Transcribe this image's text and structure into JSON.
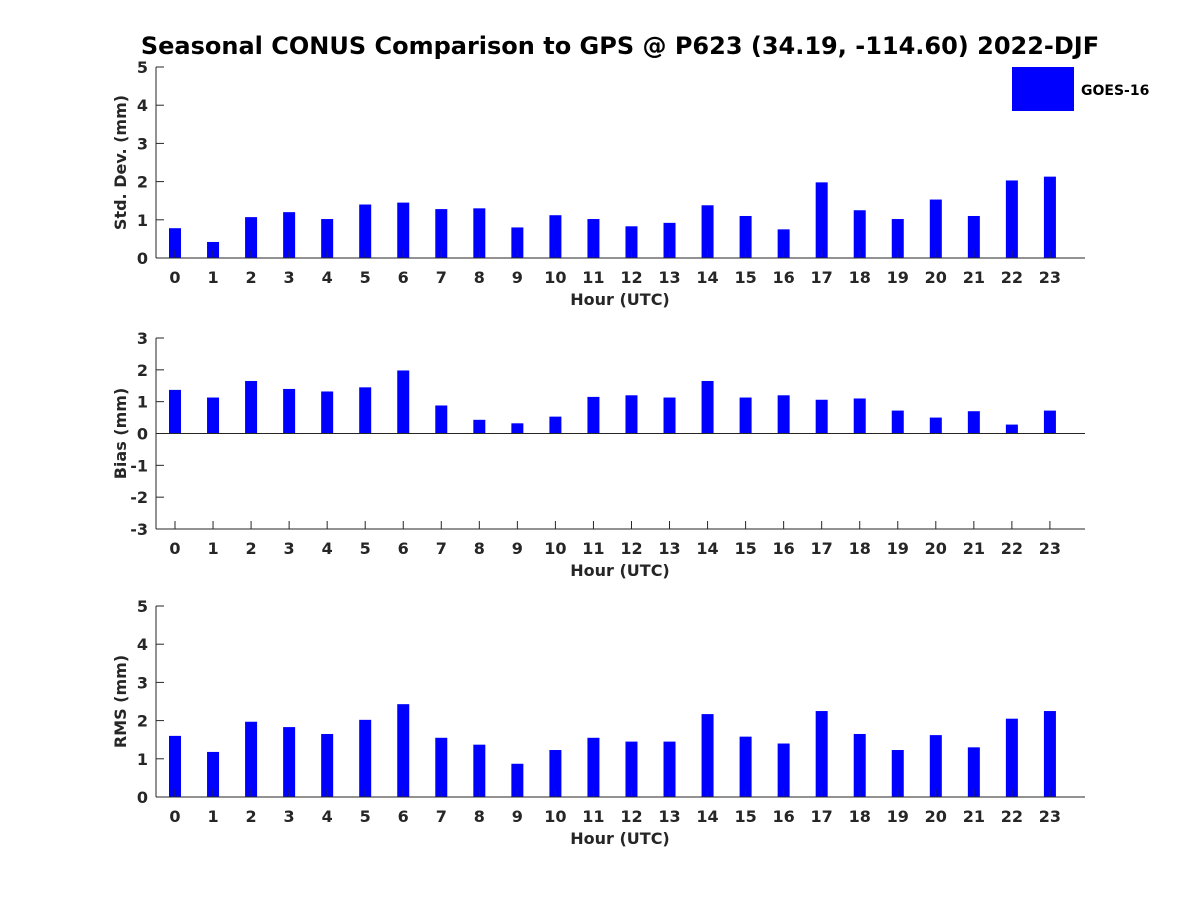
{
  "title": "Seasonal CONUS Comparison to GPS @ P623 (34.19, -114.60) 2022-DJF",
  "legend": {
    "label": "GOES-16",
    "color": "#0000ff",
    "placement": "top-right"
  },
  "chart_data": [
    {
      "type": "bar",
      "name": "std-dev",
      "xlabel": "Hour (UTC)",
      "ylabel": "Std. Dev. (mm)",
      "ylim": [
        0,
        5
      ],
      "yticks": [
        0,
        1,
        2,
        3,
        4,
        5
      ],
      "categories": [
        "0",
        "1",
        "2",
        "3",
        "4",
        "5",
        "6",
        "7",
        "8",
        "9",
        "10",
        "11",
        "12",
        "13",
        "14",
        "15",
        "16",
        "17",
        "18",
        "19",
        "20",
        "21",
        "22",
        "23"
      ],
      "series": [
        {
          "name": "GOES-16",
          "color": "#0000ff",
          "values": [
            0.78,
            0.42,
            1.07,
            1.2,
            1.02,
            1.4,
            1.45,
            1.28,
            1.3,
            0.8,
            1.12,
            1.02,
            0.83,
            0.92,
            1.38,
            1.1,
            0.75,
            1.98,
            1.25,
            1.02,
            1.53,
            1.1,
            2.03,
            2.13
          ]
        }
      ]
    },
    {
      "type": "bar",
      "name": "bias",
      "xlabel": "Hour (UTC)",
      "ylabel": "Bias (mm)",
      "ylim": [
        -3,
        3
      ],
      "yticks": [
        -3,
        -2,
        -1,
        0,
        1,
        2,
        3
      ],
      "baseline": 0,
      "categories": [
        "0",
        "1",
        "2",
        "3",
        "4",
        "5",
        "6",
        "7",
        "8",
        "9",
        "10",
        "11",
        "12",
        "13",
        "14",
        "15",
        "16",
        "17",
        "18",
        "19",
        "20",
        "21",
        "22",
        "23"
      ],
      "series": [
        {
          "name": "GOES-16",
          "color": "#0000ff",
          "values": [
            1.37,
            1.13,
            1.65,
            1.4,
            1.32,
            1.45,
            1.98,
            0.88,
            0.43,
            0.32,
            0.53,
            1.15,
            1.2,
            1.13,
            1.65,
            1.13,
            1.2,
            1.06,
            1.1,
            0.72,
            0.5,
            0.7,
            0.28,
            0.72
          ]
        }
      ]
    },
    {
      "type": "bar",
      "name": "rms",
      "xlabel": "Hour (UTC)",
      "ylabel": "RMS (mm)",
      "ylim": [
        0,
        5
      ],
      "yticks": [
        0,
        1,
        2,
        3,
        4,
        5
      ],
      "categories": [
        "0",
        "1",
        "2",
        "3",
        "4",
        "5",
        "6",
        "7",
        "8",
        "9",
        "10",
        "11",
        "12",
        "13",
        "14",
        "15",
        "16",
        "17",
        "18",
        "19",
        "20",
        "21",
        "22",
        "23"
      ],
      "series": [
        {
          "name": "GOES-16",
          "color": "#0000ff",
          "values": [
            1.6,
            1.18,
            1.97,
            1.83,
            1.65,
            2.02,
            2.43,
            1.55,
            1.37,
            0.87,
            1.23,
            1.55,
            1.45,
            1.45,
            2.17,
            1.58,
            1.4,
            2.25,
            1.65,
            1.23,
            1.62,
            1.3,
            2.05,
            2.25
          ]
        }
      ]
    }
  ]
}
